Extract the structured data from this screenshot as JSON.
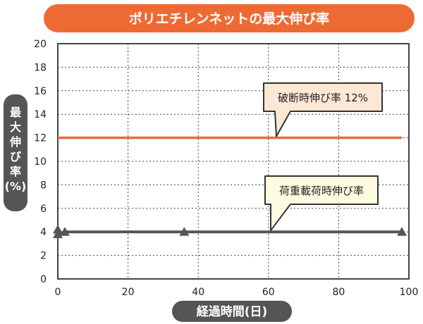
{
  "chart_data": {
    "type": "line",
    "title": "ポリエチレンネットの最大伸び率",
    "xlabel": "経過時間(日)",
    "ylabel_lines": [
      "最",
      "大",
      "伸",
      "び",
      "率",
      "(%)"
    ],
    "xlim": [
      0,
      100
    ],
    "ylim": [
      0,
      20
    ],
    "x_ticks": [
      0,
      20,
      40,
      60,
      80,
      100
    ],
    "y_ticks": [
      0,
      2,
      4,
      6,
      8,
      10,
      12,
      14,
      16,
      18,
      20
    ],
    "grid": true,
    "series": [
      {
        "name": "破断時伸び率 12%",
        "color": "#ee6a35",
        "marker": "none",
        "x": [
          0,
          98
        ],
        "y": [
          12,
          12
        ]
      },
      {
        "name": "荷重載荷時伸び率",
        "color": "#555555",
        "marker": "triangle",
        "x": [
          0,
          0,
          2,
          36,
          98
        ],
        "y": [
          4.2,
          3.8,
          4.0,
          4.0,
          4.0
        ]
      }
    ],
    "annotations": [
      {
        "text": "破断時伸び率 12%",
        "series": 0
      },
      {
        "text": "荷重載荷時伸び率",
        "series": 1
      }
    ]
  }
}
